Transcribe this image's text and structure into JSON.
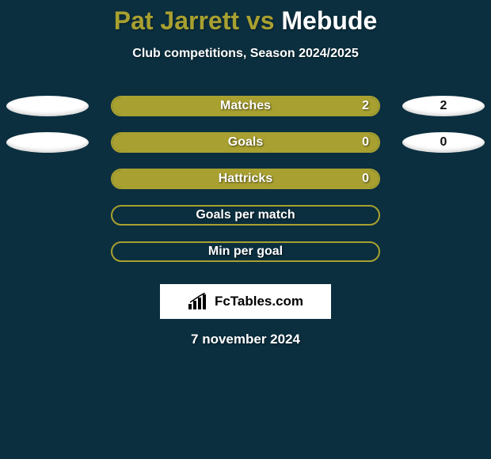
{
  "background_color": "#0b2f3f",
  "title": {
    "left_text": "Pat Jarrett",
    "vs_text": " vs ",
    "right_text": "Mebude",
    "left_color": "#a8a030",
    "right_color": "#ffffff"
  },
  "subtitle": "Club competitions, Season 2024/2025",
  "oval_background": "#ffffff",
  "pill_border_color": "#a8a030",
  "pill_fill_color": "#a8a030",
  "stats": [
    {
      "label": "Matches",
      "left_val": "",
      "right_val": "2",
      "fill_pct": 100,
      "show_left_oval": true,
      "show_right_oval": true,
      "show_right_value": true
    },
    {
      "label": "Goals",
      "left_val": "",
      "right_val": "0",
      "fill_pct": 100,
      "show_left_oval": true,
      "show_right_oval": true,
      "show_right_value": true
    },
    {
      "label": "Hattricks",
      "left_val": "",
      "right_val": "0",
      "fill_pct": 100,
      "show_left_oval": false,
      "show_right_oval": false,
      "show_right_value": true
    },
    {
      "label": "Goals per match",
      "left_val": "",
      "right_val": "",
      "fill_pct": 0,
      "show_left_oval": false,
      "show_right_oval": false,
      "show_right_value": false
    },
    {
      "label": "Min per goal",
      "left_val": "",
      "right_val": "",
      "fill_pct": 0,
      "show_left_oval": false,
      "show_right_oval": false,
      "show_right_value": false
    }
  ],
  "logo_text": "FcTables.com",
  "date_text": "7 november 2024"
}
